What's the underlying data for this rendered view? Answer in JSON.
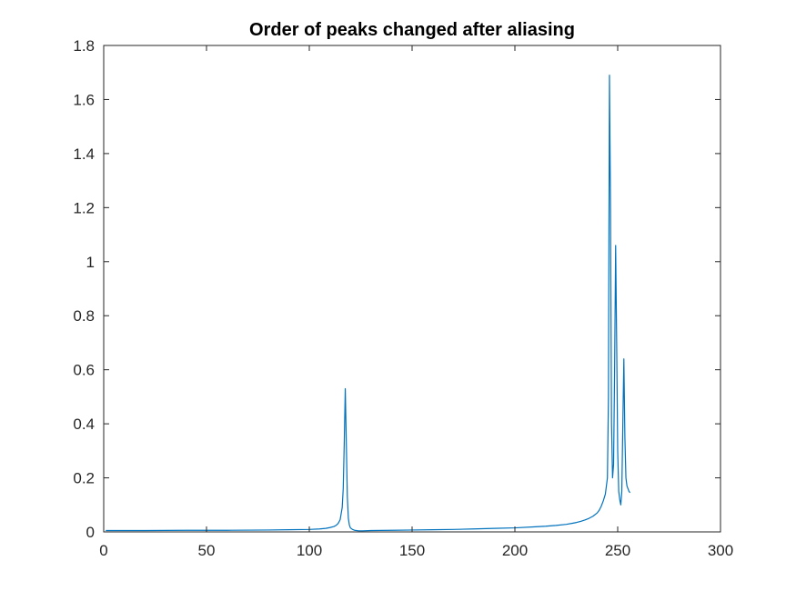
{
  "chart_data": {
    "type": "line",
    "title": "Order of peaks changed after aliasing",
    "xlabel": "",
    "ylabel": "",
    "xlim": [
      0,
      300
    ],
    "ylim": [
      0,
      1.8
    ],
    "xticks": [
      "0",
      "50",
      "100",
      "150",
      "200",
      "250",
      "300"
    ],
    "yticks": [
      "0",
      "0.2",
      "0.4",
      "0.6",
      "0.8",
      "1",
      "1.2",
      "1.4",
      "1.6",
      "1.8"
    ],
    "grid": false,
    "legend": "none",
    "line_color": "#0072BD",
    "series": [
      {
        "x": [
          1,
          20,
          40,
          60,
          80,
          90,
          100,
          105,
          108,
          110,
          112,
          113,
          114,
          115,
          116,
          116.5,
          117,
          117.5,
          118,
          118.5,
          119,
          119.5,
          120,
          121,
          122,
          124,
          126,
          130,
          140,
          150,
          160,
          170,
          180,
          190,
          200,
          210,
          215,
          220,
          225,
          228,
          230,
          232,
          234,
          236,
          238,
          240,
          241,
          242,
          243,
          244,
          245,
          245.5,
          246,
          246.5,
          247,
          247.5,
          248,
          248.5,
          249,
          249.5,
          250,
          250.5,
          251,
          251.5,
          252,
          252.5,
          253,
          253.5,
          254,
          254.5,
          255,
          255.5,
          256
        ],
        "y": [
          0.005,
          0.005,
          0.006,
          0.006,
          0.007,
          0.008,
          0.009,
          0.011,
          0.013,
          0.016,
          0.02,
          0.024,
          0.031,
          0.045,
          0.09,
          0.16,
          0.33,
          0.53,
          0.33,
          0.13,
          0.05,
          0.025,
          0.015,
          0.009,
          0.006,
          0.004,
          0.004,
          0.005,
          0.006,
          0.007,
          0.008,
          0.009,
          0.011,
          0.013,
          0.015,
          0.019,
          0.021,
          0.024,
          0.028,
          0.032,
          0.035,
          0.039,
          0.044,
          0.05,
          0.058,
          0.07,
          0.08,
          0.095,
          0.115,
          0.14,
          0.2,
          0.5,
          1.69,
          1.2,
          0.4,
          0.2,
          0.25,
          0.6,
          1.06,
          0.7,
          0.3,
          0.15,
          0.12,
          0.1,
          0.15,
          0.4,
          0.64,
          0.35,
          0.2,
          0.17,
          0.16,
          0.15,
          0.145
        ]
      }
    ]
  }
}
